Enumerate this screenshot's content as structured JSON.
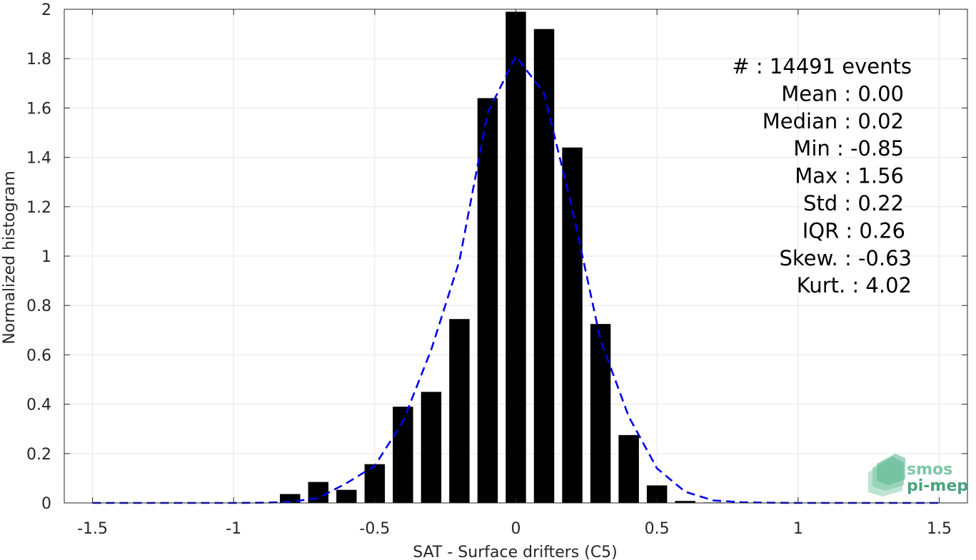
{
  "chart_data": {
    "type": "bar",
    "xlabel": "SAT - Surface drifters (C5)",
    "ylabel": "Normalized histogram",
    "xlim": [
      -1.6,
      1.6
    ],
    "ylim": [
      0,
      2
    ],
    "grid": true,
    "xticks": [
      -1.5,
      -1,
      -0.5,
      0,
      0.5,
      1,
      1.5
    ],
    "xtick_labels": [
      "-1.5",
      "-1",
      "-0.5",
      "0",
      "0.5",
      "1",
      "1.5"
    ],
    "yticks": [
      0,
      0.2,
      0.4,
      0.6,
      0.8,
      1,
      1.2,
      1.4,
      1.6,
      1.8,
      2
    ],
    "ytick_labels": [
      "0",
      "0.2",
      "0.4",
      "0.6",
      "0.8",
      "1",
      "1.2",
      "1.4",
      "1.6",
      "1.8",
      "2"
    ],
    "bar_width": 0.072,
    "bars": {
      "x": [
        -1.5,
        -1.4,
        -1.3,
        -1.2,
        -1.1,
        -1.0,
        -0.9,
        -0.8,
        -0.7,
        -0.6,
        -0.5,
        -0.4,
        -0.3,
        -0.2,
        -0.1,
        0.0,
        0.1,
        0.2,
        0.3,
        0.4,
        0.5,
        0.6,
        0.7,
        0.8,
        0.9,
        1.0,
        1.1,
        1.2,
        1.3,
        1.4,
        1.5
      ],
      "values": [
        0,
        0,
        0,
        0,
        0,
        0,
        0,
        0.036,
        0.085,
        0.053,
        0.157,
        0.39,
        0.45,
        0.745,
        1.64,
        1.99,
        1.92,
        1.44,
        0.725,
        0.275,
        0.071,
        0.008,
        0.002,
        0.001,
        0.0005,
        0.0005,
        0.0005,
        0.0005,
        0.0005,
        0.0005,
        0.0005
      ],
      "color": "#000000"
    },
    "fit_curve": {
      "style": "dashed",
      "color": "#0000e6",
      "x": [
        -1.5,
        -1.4,
        -1.3,
        -1.2,
        -1.1,
        -1.0,
        -0.9,
        -0.8,
        -0.7,
        -0.6,
        -0.5,
        -0.4,
        -0.3,
        -0.2,
        -0.1,
        0.0,
        0.1,
        0.2,
        0.3,
        0.4,
        0.5,
        0.6,
        0.7,
        0.8,
        0.9,
        1.0,
        1.1,
        1.2,
        1.3,
        1.4,
        1.5
      ],
      "y": [
        0,
        0,
        0,
        0,
        0,
        0,
        0.001,
        0.004,
        0.02,
        0.08,
        0.15,
        0.33,
        0.62,
        0.98,
        1.58,
        1.81,
        1.66,
        1.19,
        0.66,
        0.35,
        0.14,
        0.045,
        0.01,
        0.003,
        0.001,
        0,
        0,
        0,
        0,
        0,
        0
      ]
    },
    "annotations": [
      "#  : 14491 events",
      "Mean : 0.00",
      "Median : 0.02",
      "Min : -0.85",
      "Max : 1.56",
      "Std : 0.22",
      "IQR : 0.26",
      "Skew. : -0.63",
      "Kurt. : 4.02"
    ]
  },
  "logo": {
    "line1": "smos",
    "line2": "pi-mep",
    "color1": "#7cc7a6",
    "color2": "#4aa37d"
  }
}
